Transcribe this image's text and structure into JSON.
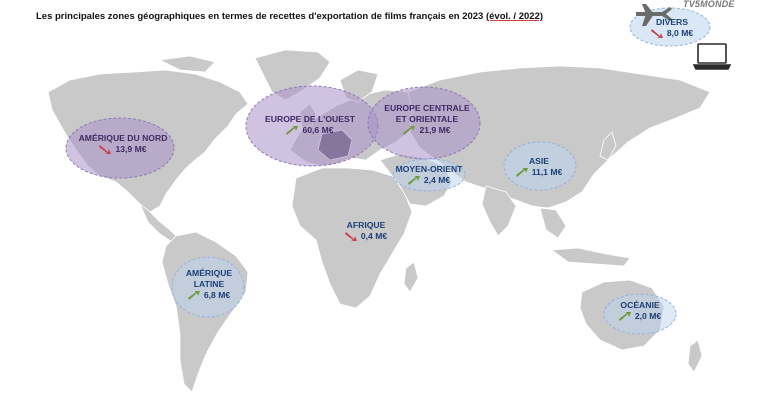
{
  "header": {
    "title": "Les principales zones géographiques en termes de recettes d'exportation de films français en 2023 ",
    "title_suffix": "(évol. / 2022)",
    "brand": "TV5MONDE"
  },
  "colors": {
    "land": "#c9c9c9",
    "border": "#ffffff",
    "france": "#5c5566",
    "up": "#6e9a3a",
    "down": "#c8454f",
    "purple_zone": "#a98fc8",
    "blue_zone": "#bcd3ee"
  },
  "zones": {
    "divers": {
      "name": "DIVERS",
      "value": "8,0 M€",
      "trend": "down"
    },
    "amerique_nord": {
      "name": "AMÉRIQUE DU NORD",
      "value": "13,9 M€",
      "trend": "down"
    },
    "europe_ouest": {
      "name": "EUROPE DE L'OUEST",
      "value": "60,6 M€",
      "trend": "up"
    },
    "europe_centrale": {
      "name_line1": "EUROPE CENTRALE",
      "name_line2": "ET ORIENTALE",
      "value": "21,9 M€",
      "trend": "up"
    },
    "moyen_orient": {
      "name": "MOYEN-ORIENT",
      "value": "2,4 M€",
      "trend": "up"
    },
    "asie": {
      "name": "ASIE",
      "value": "11,1 M€",
      "trend": "up"
    },
    "afrique": {
      "name": "AFRIQUE",
      "value": "0,4 M€",
      "trend": "down"
    },
    "amerique_latine": {
      "name_line1": "AMÉRIQUE",
      "name_line2": "LATINE",
      "value": "6,8 M€",
      "trend": "up"
    },
    "oceanie": {
      "name": "OCÉANIE",
      "value": "2,0 M€",
      "trend": "up"
    }
  },
  "icons": [
    "airplane-icon",
    "laptop-icon",
    "arrow-up-icon",
    "arrow-down-icon"
  ]
}
